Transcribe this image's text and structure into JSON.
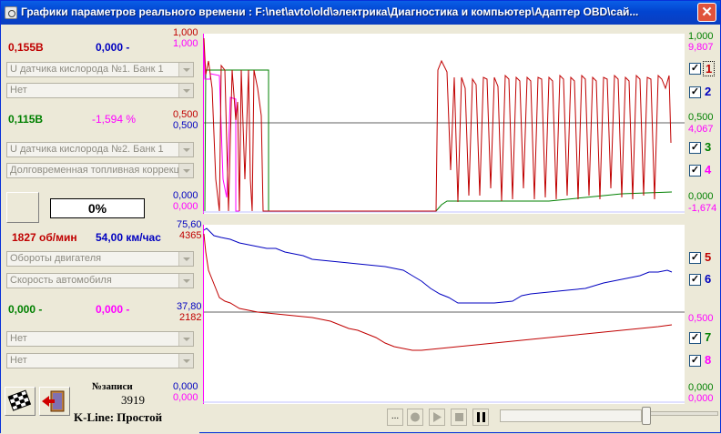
{
  "title": "Графики параметров реального времени : F:\\net\\avto\\old\\электрика\\Диагностика и компьютер\\Адаптер OBD\\сай...",
  "close_label": "✕",
  "group1": {
    "val_a": "0,155В",
    "val_b": "0,000 -",
    "combo_a": "U датчика кислорода №1. Банк 1",
    "combo_b": "Нет"
  },
  "group2": {
    "val_a": "0,115В",
    "val_b": "-1,594 %",
    "combo_a": "U датчика кислорода №2. Банк 1",
    "combo_b": "Долговременная топливная коррекц"
  },
  "progress": {
    "label": "0%",
    "value": 0
  },
  "group3": {
    "val_a": "1827 об/мин",
    "val_b": "54,00 км/час",
    "combo_a": "Обороты двигателя",
    "combo_b": "Скорость автомобиля"
  },
  "group4": {
    "val_a": "0,000 -",
    "val_b": "0,000 -",
    "combo_a": "Нет",
    "combo_b": "Нет"
  },
  "record": {
    "label": "№записи",
    "value": "3919"
  },
  "status": "K-Line: Простой",
  "chart_top": {
    "left_ticks": [
      [
        "1,000",
        "#c00000"
      ],
      [
        "1,000",
        "#ff00ff"
      ],
      [
        "0,500",
        "#c00000"
      ],
      [
        "0,500",
        "#0000c0"
      ],
      [
        "0,000",
        "#0000c0"
      ],
      [
        "0,000",
        "#ff00ff"
      ]
    ],
    "right_ticks": [
      [
        "1,000",
        "#008000"
      ],
      [
        "9,807",
        "#ff00ff"
      ],
      [
        "0,500",
        "#008000"
      ],
      [
        "4,067",
        "#ff00ff"
      ],
      [
        "0,000",
        "#008000"
      ],
      [
        "-1,674",
        "#ff00ff"
      ]
    ]
  },
  "chart_bottom": {
    "left_ticks": [
      [
        "75,60",
        "#0000c0"
      ],
      [
        "4365",
        "#c00000"
      ],
      [
        "37,80",
        "#0000c0"
      ],
      [
        "2182",
        "#c00000"
      ],
      [
        "0,000",
        "#0000c0"
      ],
      [
        "0,000",
        "#ff00ff"
      ]
    ],
    "right_ticks": [
      [
        "0,500",
        "#ff00ff"
      ],
      [
        "0,000",
        "#008000"
      ],
      [
        "0,000",
        "#ff00ff"
      ]
    ]
  },
  "channels": [
    {
      "n": "1",
      "color": "#c00000",
      "checked": "✓"
    },
    {
      "n": "2",
      "color": "#0000c0",
      "checked": "✓"
    },
    {
      "n": "3",
      "color": "#008000",
      "checked": "✓"
    },
    {
      "n": "4",
      "color": "#ff00ff",
      "checked": "✓"
    },
    {
      "n": "5",
      "color": "#c00000",
      "checked": "✓"
    },
    {
      "n": "6",
      "color": "#0000c0",
      "checked": "✓"
    },
    {
      "n": "7",
      "color": "#008000",
      "checked": "✓"
    },
    {
      "n": "8",
      "color": "#ff00ff",
      "checked": "✓"
    }
  ],
  "toolbar": {
    "dots_label": "..."
  }
}
